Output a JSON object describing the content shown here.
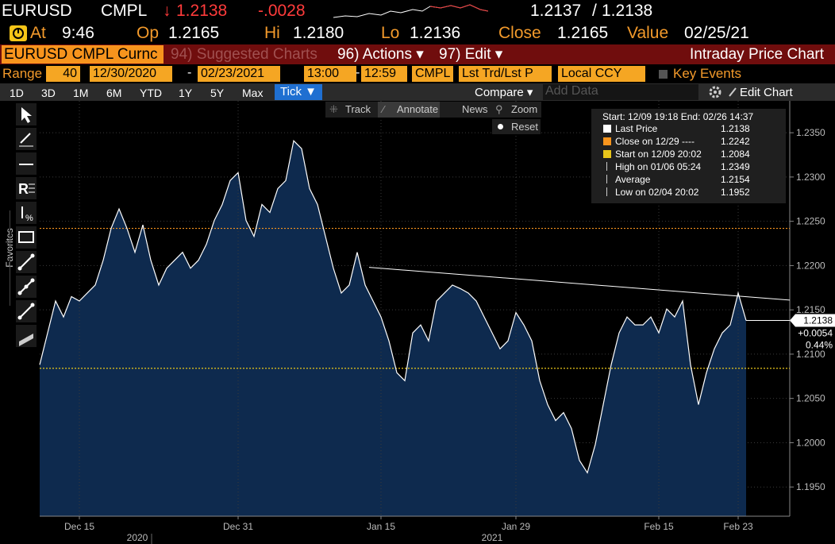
{
  "quote": {
    "ticker": "EURUSD",
    "source": "CMPL",
    "arrow": "↓",
    "last": "1.2138",
    "change": "-.0028",
    "bid": "1.2137",
    "separator": "/",
    "ask": "1.2138"
  },
  "stats": [
    {
      "label": "At",
      "value": "9:46"
    },
    {
      "label": "Op",
      "value": "1.2165"
    },
    {
      "label": "Hi",
      "value": "1.2180"
    },
    {
      "label": "Lo",
      "value": "1.2136"
    },
    {
      "label": "Close",
      "value": "1.2165"
    },
    {
      "label": "Value",
      "value": "02/25/21"
    }
  ],
  "menu": {
    "security": "EURUSD CMPL Curnc",
    "suggested": "94) Suggested Charts",
    "actions": "96) Actions ▾",
    "edit": "97) Edit ▾",
    "title": "Intraday Price Chart"
  },
  "range": {
    "label": "Range",
    "period": "40",
    "start_date": "12/30/2020",
    "date_sep": "-",
    "end_date": "02/23/2021",
    "start_time": "13:00",
    "time_sep": "-",
    "end_time": "12:59",
    "source": "CMPL",
    "field": "Lst Trd/Lst P",
    "currency": "Local CCY",
    "key_events": "Key Events"
  },
  "periods": [
    "1D",
    "3D",
    "1M",
    "6M",
    "YTD",
    "1Y",
    "5Y",
    "Max",
    "Tick ▼"
  ],
  "compare": "Compare ▾",
  "add_data": "Add Data",
  "edit_chart": "Edit Chart",
  "tools": [
    "Track",
    "Annotate",
    "News",
    "Zoom"
  ],
  "reset": "Reset",
  "sidebar_label": "Favorites",
  "chart_data": {
    "type": "area",
    "color": "#0e2a4e",
    "line_color": "#ffffff",
    "categories": [
      null,
      null,
      null,
      null,
      null,
      "Dec 15",
      null,
      null,
      null,
      null,
      null,
      null,
      null,
      null,
      null,
      null,
      null,
      null,
      null,
      null,
      null,
      null,
      null,
      null,
      null,
      "Dec 31",
      null,
      null,
      null,
      null,
      null,
      null,
      null,
      null,
      null,
      null,
      null,
      null,
      null,
      null,
      null,
      null,
      null,
      "Jan 15",
      null,
      null,
      null,
      null,
      null,
      null,
      null,
      null,
      null,
      null,
      null,
      null,
      null,
      null,
      null,
      null,
      "Jan 29",
      null,
      null,
      null,
      null,
      null,
      null,
      null,
      null,
      null,
      null,
      null,
      null,
      null,
      null,
      null,
      null,
      null,
      "Feb 15",
      null,
      null,
      null,
      null,
      null,
      null,
      null,
      null,
      null,
      "Feb 23",
      null
    ],
    "values": [
      1.2088,
      1.2124,
      1.216,
      1.2142,
      1.2165,
      1.216,
      1.2169,
      1.2178,
      1.2206,
      1.2242,
      1.2264,
      1.2242,
      1.2215,
      1.2246,
      1.2206,
      1.2178,
      1.2197,
      1.2206,
      1.2215,
      1.2197,
      1.2206,
      1.2224,
      1.2251,
      1.2269,
      1.2296,
      1.2305,
      1.2251,
      1.2233,
      1.2269,
      1.226,
      1.2287,
      1.2296,
      1.2341,
      1.2332,
      1.2287,
      1.2269,
      1.2233,
      1.2197,
      1.2169,
      1.2178,
      1.2215,
      1.2178,
      1.216,
      1.2142,
      1.2115,
      1.2079,
      1.207,
      1.2124,
      1.2133,
      1.2115,
      1.216,
      1.2169,
      1.2178,
      1.2174,
      1.2169,
      1.216,
      1.2142,
      1.2124,
      1.2106,
      1.2115,
      1.2147,
      1.2133,
      1.2115,
      1.207,
      1.2043,
      1.2025,
      1.2034,
      1.2016,
      1.198,
      1.1966,
      1.1998,
      1.2043,
      1.2088,
      1.2124,
      1.2142,
      1.2133,
      1.2133,
      1.2142,
      1.2124,
      1.2151,
      1.2142,
      1.216,
      1.2088,
      1.2043,
      1.2079,
      1.2106,
      1.2124,
      1.2133,
      1.2169,
      1.2138
    ],
    "year_labels": [
      "2020",
      "2021"
    ],
    "ylim": [
      1.1917,
      1.2386
    ],
    "yticks": [
      {
        "value": 1.195,
        "label": "1.1950"
      },
      {
        "value": 1.2,
        "label": "1.2000"
      },
      {
        "value": 1.205,
        "label": "1.2050"
      },
      {
        "value": 1.21,
        "label": "1.2100"
      },
      {
        "value": 1.215,
        "label": "1.2150"
      },
      {
        "value": 1.22,
        "label": "1.2200"
      },
      {
        "value": 1.225,
        "label": "1.2250"
      },
      {
        "value": 1.23,
        "label": "1.2300"
      },
      {
        "value": 1.235,
        "label": "1.2350"
      }
    ],
    "grid": true,
    "trendline": {
      "values": [
        1.2198,
        1.2161
      ],
      "color": "#ffffff"
    },
    "last_marker": {
      "value": 1.2138,
      "change": "+0.0054",
      "change_pct": "0.44%"
    },
    "legend": {
      "header": "Start: 12/09 19:18 End: 02/26 14:37",
      "items": [
        {
          "name": "Last Price",
          "value": 1.2138,
          "color": "#ffffff"
        },
        {
          "name": "Close on 12/29 ----",
          "value": 1.2242,
          "color": "#f7941d",
          "line": "dotted"
        },
        {
          "name": "Start on 12/09 20:02",
          "value": 1.2084,
          "color": "#e8c51a",
          "line": "dotted"
        },
        {
          "name": "High on 01/06 05:24",
          "value": 1.2349,
          "color": "#cccccc"
        },
        {
          "name": "Average",
          "value": 1.2154,
          "color": "#cccccc"
        },
        {
          "name": "Low on 02/04 20:02",
          "value": 1.1952,
          "color": "#cccccc"
        }
      ]
    }
  }
}
